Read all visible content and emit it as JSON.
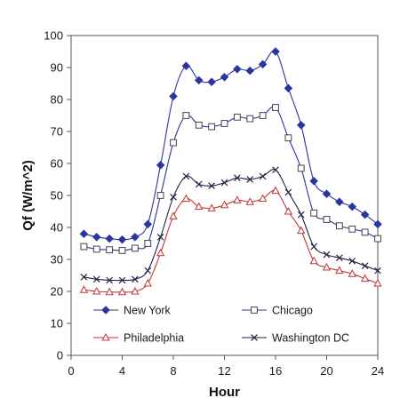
{
  "chart_data": {
    "type": "line",
    "xlabel": "Hour",
    "ylabel": "Qf (W/m^2)",
    "xlim": [
      0,
      24
    ],
    "ylim": [
      0,
      100
    ],
    "x_ticks": [
      0,
      4,
      8,
      12,
      16,
      20,
      24
    ],
    "y_ticks": [
      0,
      10,
      20,
      30,
      40,
      50,
      60,
      70,
      80,
      90,
      100
    ],
    "grid": false,
    "legend_position": "bottom inside plot, two columns",
    "x": [
      1,
      2,
      3,
      4,
      5,
      6,
      7,
      8,
      9,
      10,
      11,
      12,
      13,
      14,
      15,
      16,
      17,
      18,
      19,
      20,
      21,
      22,
      23,
      24
    ],
    "series": [
      {
        "name": "New York",
        "color": "#2b35a0",
        "marker": "diamond-filled",
        "values": [
          38,
          37,
          36.5,
          36.2,
          37,
          41,
          59.5,
          81,
          90.5,
          86,
          85.5,
          87,
          89.5,
          89,
          91,
          95,
          83.5,
          72,
          54.5,
          50.5,
          48,
          46.5,
          44,
          41
        ]
      },
      {
        "name": "Chicago",
        "color": "#2b35a0",
        "marker": "square-open",
        "values": [
          34,
          33.2,
          33,
          32.8,
          33.5,
          35,
          50,
          66.5,
          75,
          72,
          71.5,
          72.5,
          74.5,
          74,
          75,
          77.5,
          68,
          58.5,
          44.5,
          42.5,
          40.5,
          39.5,
          38.5,
          36.5
        ]
      },
      {
        "name": "Philadelphia",
        "color": "#c23434",
        "marker": "triangle-open",
        "values": [
          20.5,
          20,
          19.8,
          19.8,
          20,
          22.5,
          32,
          43.5,
          49,
          46.5,
          46,
          47,
          48.5,
          48,
          49,
          51.5,
          45,
          39,
          29.5,
          27.5,
          26.5,
          25.5,
          24,
          22.5
        ]
      },
      {
        "name": "Washington DC",
        "color": "#222244",
        "marker": "x",
        "values": [
          24.5,
          23.8,
          23.5,
          23.5,
          23.8,
          26.5,
          37,
          49.5,
          56,
          53.5,
          53,
          54,
          55.5,
          55,
          56,
          58,
          51,
          44,
          34,
          31.5,
          30.5,
          29.5,
          28,
          26.5
        ]
      }
    ]
  }
}
